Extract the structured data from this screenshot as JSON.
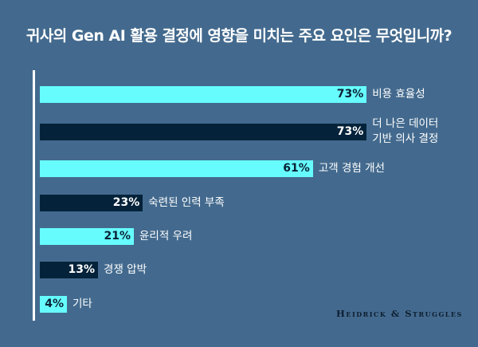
{
  "chart_data": {
    "type": "bar",
    "orientation": "horizontal",
    "title": "귀사의 Gen AI 활용 결정에 영향을 미치는 주요 요인은 무엇입니까?",
    "categories": [
      "비용 효율성",
      "더 나은 데이터\n기반 의사 결정",
      "고객 경험 개선",
      "숙련된 인력 부족",
      "윤리적 우려",
      "경쟁 압박",
      "기타"
    ],
    "values": [
      73,
      73,
      61,
      23,
      21,
      13,
      4
    ],
    "data_labels": [
      "73%",
      "73%",
      "61%",
      "23%",
      "21%",
      "13%",
      "4%"
    ],
    "bar_colors": [
      "#66fcfd",
      "#04223a",
      "#66fcfd",
      "#04223a",
      "#66fcfd",
      "#04223a",
      "#66fcfd"
    ],
    "unit": "%",
    "grid": false
  },
  "brand": "Heidrick & Struggles",
  "background": "#436a8e"
}
